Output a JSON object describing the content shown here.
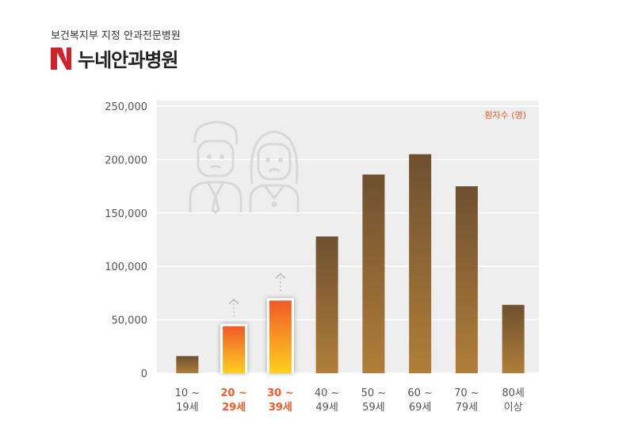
{
  "header": {
    "subtitle": "보건복지부 지정 안과전문병원",
    "name": "누네안과병원",
    "logo_icon": "hospital-logo-n-icon",
    "logo_color": "#d2232a"
  },
  "chart_data": {
    "type": "bar",
    "legend": "환자수 (명)",
    "legend_color": "#f05a28",
    "ylim": [
      0,
      250000
    ],
    "yticks": [
      "250,000",
      "200,000",
      "150,000",
      "100,000",
      "50,000",
      "0"
    ],
    "categories": [
      {
        "line1": "10 ~",
        "line2": "19세",
        "highlight": false
      },
      {
        "line1": "20 ~",
        "line2": "29세",
        "highlight": true
      },
      {
        "line1": "30 ~",
        "line2": "39세",
        "highlight": true
      },
      {
        "line1": "40 ~",
        "line2": "49세",
        "highlight": false
      },
      {
        "line1": "50 ~",
        "line2": "59세",
        "highlight": false
      },
      {
        "line1": "60 ~",
        "line2": "69세",
        "highlight": false
      },
      {
        "line1": "70 ~",
        "line2": "79세",
        "highlight": false
      },
      {
        "line1": "80세",
        "line2": "이상",
        "highlight": false
      }
    ],
    "values": [
      16000,
      44000,
      68000,
      128000,
      186000,
      205000,
      175000,
      64000
    ],
    "grid": true,
    "colors": {
      "bar_top": "#6e5030",
      "bar_bottom": "#b07e38",
      "highlight_top": "#f05a28",
      "highlight_bottom": "#ffd01e",
      "highlight_label": "#f05a28",
      "label": "#555555",
      "plot_bg": "#eeeeee"
    },
    "decorations": [
      "sad-man-icon",
      "sad-woman-icon",
      "up-arrow-icon",
      "up-arrow-icon"
    ]
  }
}
